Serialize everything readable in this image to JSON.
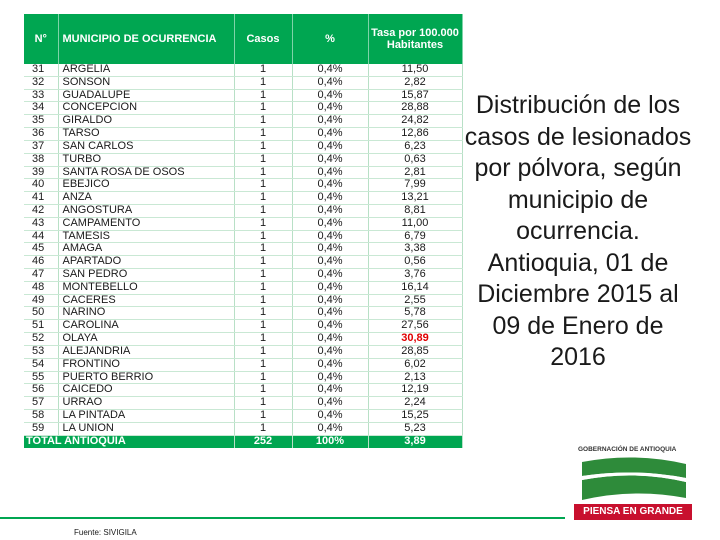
{
  "table": {
    "headers": {
      "num": "N°",
      "municipio": "MUNICIPIO DE OCURRENCIA",
      "casos": "Casos",
      "pct": "%",
      "tasa": "Tasa por 100.000 Habitantes"
    },
    "rows": [
      {
        "num": "31",
        "municipio": "ARGELIA",
        "casos": "1",
        "pct": "0,4%",
        "tasa": "11,50"
      },
      {
        "num": "32",
        "municipio": "SONSON",
        "casos": "1",
        "pct": "0,4%",
        "tasa": "2,82"
      },
      {
        "num": "33",
        "municipio": "GUADALUPE",
        "casos": "1",
        "pct": "0,4%",
        "tasa": "15,87"
      },
      {
        "num": "34",
        "municipio": "CONCEPCION",
        "casos": "1",
        "pct": "0,4%",
        "tasa": "28,88"
      },
      {
        "num": "35",
        "municipio": "GIRALDO",
        "casos": "1",
        "pct": "0,4%",
        "tasa": "24,82"
      },
      {
        "num": "36",
        "municipio": "TARSO",
        "casos": "1",
        "pct": "0,4%",
        "tasa": "12,86"
      },
      {
        "num": "37",
        "municipio": "SAN CARLOS",
        "casos": "1",
        "pct": "0,4%",
        "tasa": "6,23"
      },
      {
        "num": "38",
        "municipio": "TURBO",
        "casos": "1",
        "pct": "0,4%",
        "tasa": "0,63"
      },
      {
        "num": "39",
        "municipio": "SANTA ROSA DE OSOS",
        "casos": "1",
        "pct": "0,4%",
        "tasa": "2,81"
      },
      {
        "num": "40",
        "municipio": "EBEJICO",
        "casos": "1",
        "pct": "0,4%",
        "tasa": "7,99"
      },
      {
        "num": "41",
        "municipio": "ANZA",
        "casos": "1",
        "pct": "0,4%",
        "tasa": "13,21"
      },
      {
        "num": "42",
        "municipio": "ANGOSTURA",
        "casos": "1",
        "pct": "0,4%",
        "tasa": "8,81"
      },
      {
        "num": "43",
        "municipio": "CAMPAMENTO",
        "casos": "1",
        "pct": "0,4%",
        "tasa": "11,00"
      },
      {
        "num": "44",
        "municipio": "TAMESIS",
        "casos": "1",
        "pct": "0,4%",
        "tasa": "6,79"
      },
      {
        "num": "45",
        "municipio": "AMAGA",
        "casos": "1",
        "pct": "0,4%",
        "tasa": "3,38"
      },
      {
        "num": "46",
        "municipio": "APARTADO",
        "casos": "1",
        "pct": "0,4%",
        "tasa": "0,56"
      },
      {
        "num": "47",
        "municipio": "SAN PEDRO",
        "casos": "1",
        "pct": "0,4%",
        "tasa": "3,76"
      },
      {
        "num": "48",
        "municipio": "MONTEBELLO",
        "casos": "1",
        "pct": "0,4%",
        "tasa": "16,14"
      },
      {
        "num": "49",
        "municipio": "CACERES",
        "casos": "1",
        "pct": "0,4%",
        "tasa": "2,55"
      },
      {
        "num": "50",
        "municipio": "NARIÑO",
        "casos": "1",
        "pct": "0,4%",
        "tasa": "5,78"
      },
      {
        "num": "51",
        "municipio": "CAROLINA",
        "casos": "1",
        "pct": "0,4%",
        "tasa": "27,56"
      },
      {
        "num": "52",
        "municipio": "OLAYA",
        "casos": "1",
        "pct": "0,4%",
        "tasa": "30,89",
        "highlight": true
      },
      {
        "num": "53",
        "municipio": "ALEJANDRIA",
        "casos": "1",
        "pct": "0,4%",
        "tasa": "28,85"
      },
      {
        "num": "54",
        "municipio": "FRONTINO",
        "casos": "1",
        "pct": "0,4%",
        "tasa": "6,02"
      },
      {
        "num": "55",
        "municipio": "PUERTO BERRIO",
        "casos": "1",
        "pct": "0,4%",
        "tasa": "2,13"
      },
      {
        "num": "56",
        "municipio": "CAICEDO",
        "casos": "1",
        "pct": "0,4%",
        "tasa": "12,19"
      },
      {
        "num": "57",
        "municipio": "URRAO",
        "casos": "1",
        "pct": "0,4%",
        "tasa": "2,24"
      },
      {
        "num": "58",
        "municipio": "LA PINTADA",
        "casos": "1",
        "pct": "0,4%",
        "tasa": "15,25"
      },
      {
        "num": "59",
        "municipio": "LA UNION",
        "casos": "1",
        "pct": "0,4%",
        "tasa": "5,23"
      }
    ],
    "total": {
      "label": "TOTAL ANTIOQUIA",
      "casos": "252",
      "pct": "100%",
      "tasa": "3,89"
    }
  },
  "title": "Distribución de los casos de lesionados por pólvora, según municipio de ocurrencia. Antioquia, 01 de Diciembre 2015 al 09 de Enero de 2016",
  "source": "Fuente: SIVIGILA",
  "logo": {
    "org": "GOBERNACIÓN DE ANTIOQUIA",
    "slogan": "PIENSA EN GRANDE"
  },
  "colors": {
    "header_green": "#00a651",
    "highlight_red": "#e00000",
    "slogan_red": "#c8102e"
  }
}
